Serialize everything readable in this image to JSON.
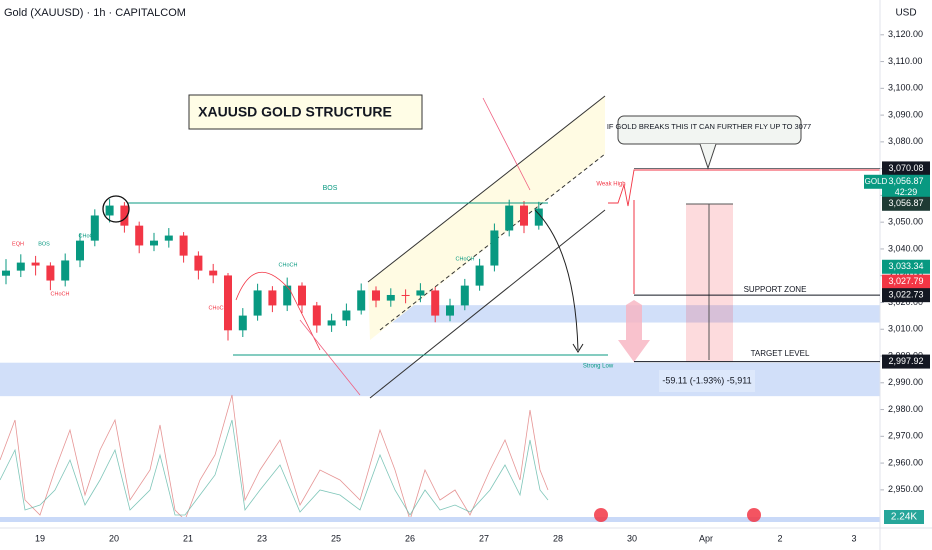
{
  "chart_data": {
    "type": "candlestick",
    "title": "Gold (XAUUSD) · 1h · CAPITALCOM",
    "y_axis_label": "USD",
    "up_color": "#089981",
    "down_color": "#f23645",
    "ylim": [
      2935,
      3133
    ],
    "yticks": [
      {
        "value": 3120,
        "label": "3,120.00"
      },
      {
        "value": 3110,
        "label": "3,110.00"
      },
      {
        "value": 3100,
        "label": "3,100.00"
      },
      {
        "value": 3090,
        "label": "3,090.00"
      },
      {
        "value": 3080,
        "label": "3,080.00"
      },
      {
        "value": 3070,
        "label": "3,070.00"
      },
      {
        "value": 3060,
        "label": "3,060.00"
      },
      {
        "value": 3050,
        "label": "3,050.00"
      },
      {
        "value": 3040,
        "label": "3,040.00"
      },
      {
        "value": 3030,
        "label": "3,030.00"
      },
      {
        "value": 3020,
        "label": "3,020.00"
      },
      {
        "value": 3010,
        "label": "3,010.00"
      },
      {
        "value": 3000,
        "label": "3,000.00"
      },
      {
        "value": 2990,
        "label": "2,990.00"
      },
      {
        "value": 2980,
        "label": "2,980.00"
      },
      {
        "value": 2970,
        "label": "2,970.00"
      },
      {
        "value": 2960,
        "label": "2,960.00"
      },
      {
        "value": 2950,
        "label": "2,950.00"
      }
    ],
    "x_labels": [
      "19",
      "20",
      "21",
      "23",
      "25",
      "26",
      "27",
      "28",
      "30",
      "Apr",
      "2",
      "3"
    ],
    "ohlc": [
      [
        3030.0,
        3036.2,
        3026.8,
        3031.9
      ],
      [
        3031.9,
        3038.0,
        3029.5,
        3034.9
      ],
      [
        3034.9,
        3037.4,
        3030.1,
        3033.8
      ],
      [
        3033.8,
        3035.0,
        3024.6,
        3028.2
      ],
      [
        3028.2,
        3038.3,
        3026.0,
        3035.7
      ],
      [
        3035.7,
        3045.9,
        3033.2,
        3043.1
      ],
      [
        3043.1,
        3054.8,
        3041.0,
        3052.5
      ],
      [
        3052.5,
        3058.6,
        3049.9,
        3056.2
      ],
      [
        3056.2,
        3057.5,
        3046.1,
        3048.7
      ],
      [
        3048.7,
        3050.2,
        3038.4,
        3041.3
      ],
      [
        3041.3,
        3046.0,
        3039.2,
        3043.1
      ],
      [
        3043.1,
        3047.8,
        3040.5,
        3045.0
      ],
      [
        3045.0,
        3046.3,
        3034.9,
        3037.5
      ],
      [
        3037.5,
        3039.1,
        3028.6,
        3031.9
      ],
      [
        3031.9,
        3034.4,
        3027.2,
        3030.1
      ],
      [
        3030.1,
        3031.0,
        3005.8,
        3009.6
      ],
      [
        3009.6,
        3017.9,
        3007.1,
        3015.1
      ],
      [
        3015.1,
        3027.0,
        3013.2,
        3024.5
      ],
      [
        3024.5,
        3026.1,
        3016.4,
        3018.9
      ],
      [
        3018.9,
        3029.3,
        3016.8,
        3026.3
      ],
      [
        3026.3,
        3027.5,
        3016.0,
        3018.9
      ],
      [
        3018.9,
        3020.2,
        3008.7,
        3011.4
      ],
      [
        3011.4,
        3015.8,
        3009.0,
        3013.3
      ],
      [
        3013.3,
        3019.6,
        3011.2,
        3017.0
      ],
      [
        3017.0,
        3027.1,
        3015.5,
        3024.5
      ],
      [
        3024.5,
        3026.0,
        3018.2,
        3020.7
      ],
      [
        3020.7,
        3025.3,
        3018.4,
        3022.8
      ],
      [
        3022.8,
        3024.9,
        3019.7,
        3022.6
      ],
      [
        3022.6,
        3027.2,
        3020.1,
        3024.5
      ],
      [
        3024.5,
        3025.8,
        3012.6,
        3015.1
      ],
      [
        3015.1,
        3021.4,
        3013.0,
        3018.9
      ],
      [
        3018.9,
        3028.8,
        3017.1,
        3026.3
      ],
      [
        3026.3,
        3036.3,
        3024.4,
        3033.8
      ],
      [
        3033.8,
        3049.5,
        3031.6,
        3046.9
      ],
      [
        3046.9,
        3058.4,
        3044.7,
        3056.2
      ],
      [
        3056.2,
        3057.9,
        3045.9,
        3048.7
      ],
      [
        3048.7,
        3057.6,
        3047.2,
        3055.1
      ]
    ],
    "zones": [
      {
        "from": 3012.5,
        "to": 3019
      },
      {
        "from": 2985,
        "to": 2997.5
      }
    ],
    "zone_color": "#c9d9f8",
    "price_tags": [
      {
        "value": 3070.08,
        "label": "3,070.08",
        "color": "#131722",
        "line": true
      },
      {
        "value": 3056.87,
        "label": "3,056.87",
        "color": "#089981",
        "line": false
      },
      {
        "value": 3056.87,
        "label": "3,056.87",
        "color": "#1e3a34",
        "line": false
      },
      {
        "value": 3033.34,
        "label": "3,033.34",
        "color": "#089981",
        "line": false
      },
      {
        "value": 3027.79,
        "label": "3,027.79",
        "color": "#f23645",
        "line": false
      },
      {
        "value": 3022.73,
        "label": "3,022.73",
        "color": "#131722",
        "line": true
      },
      {
        "value": 2997.92,
        "label": "2,997.92",
        "color": "#131722",
        "line": true
      }
    ],
    "symbol_tag": "GOLD",
    "countdown": "42:29",
    "volume_tag": "2.24K",
    "structure_title": "XAUUSD GOLD STRUCTURE",
    "callout": "IF GOLD BREAKS THIS IT CAN FURTHER FLY UP TO 3077",
    "support_label": "SUPPORT ZONE",
    "target_label": "TARGET LEVEL",
    "measure_label": "-59.11 (-1.93%) -5,911",
    "bos_label": "BOS",
    "weak_high": "Weak High",
    "strong_low": "Strong Low",
    "small_labels": [
      "EQH",
      "BOS",
      "CHoCH",
      "CHoCH",
      "CHoCH",
      "CHoCH",
      "CHoCH"
    ]
  }
}
